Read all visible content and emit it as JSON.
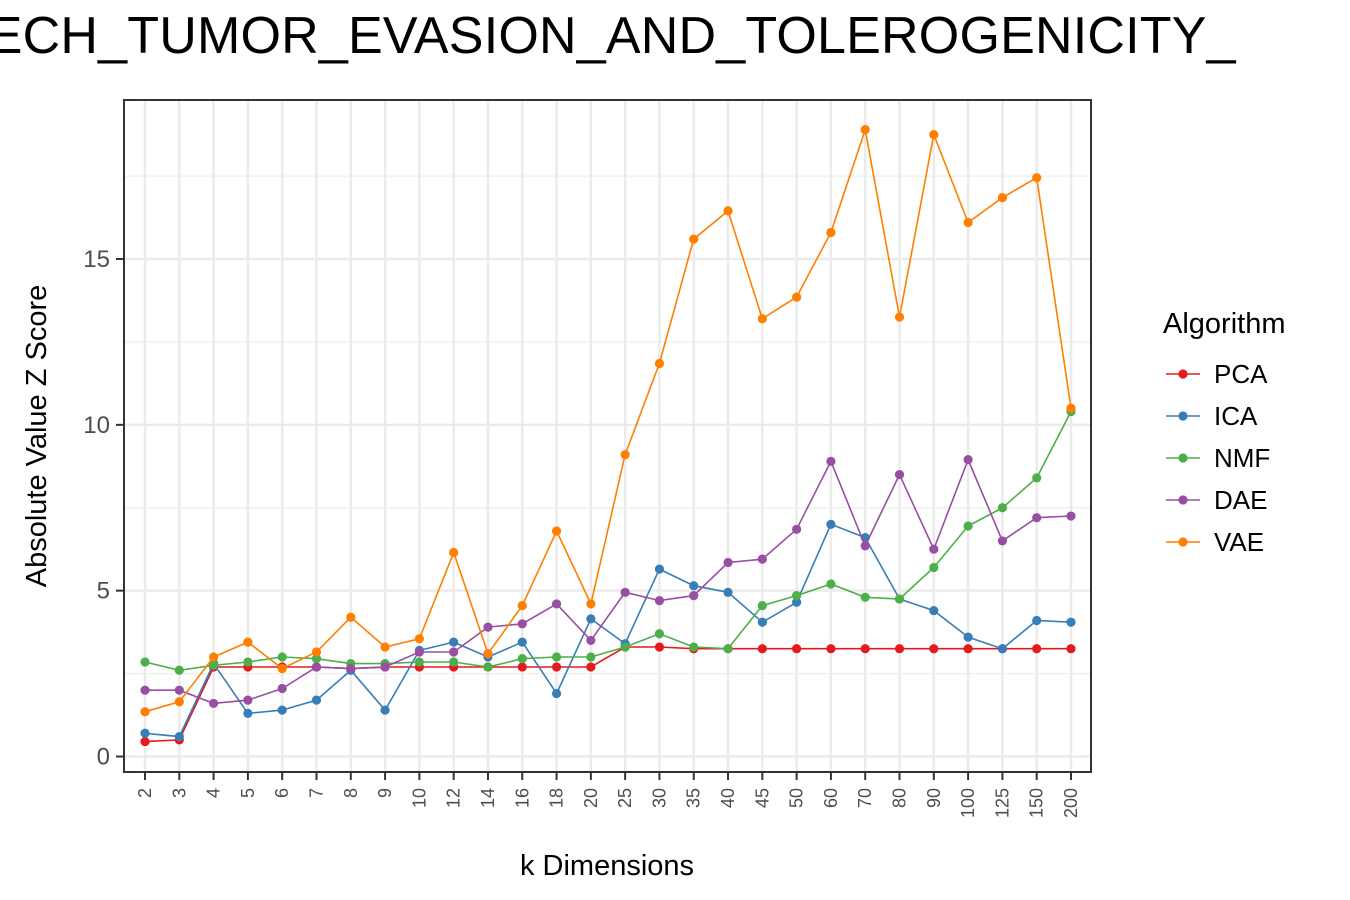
{
  "chart_data": {
    "type": "line",
    "title": "HECH_TUMOR_EVASION_AND_TOLEROGENICITY_",
    "xlabel": "k Dimensions",
    "ylabel": "Absolute Value Z Score",
    "categories": [
      "2",
      "3",
      "4",
      "5",
      "6",
      "7",
      "8",
      "9",
      "10",
      "12",
      "14",
      "16",
      "18",
      "20",
      "25",
      "30",
      "35",
      "40",
      "45",
      "50",
      "60",
      "70",
      "80",
      "90",
      "100",
      "125",
      "150",
      "200"
    ],
    "ylim": [
      -0.5,
      19.5
    ],
    "yticks": [
      0,
      5,
      10,
      15
    ],
    "grid": true,
    "legend": {
      "title": "Algorithm",
      "position": "right"
    },
    "series": [
      {
        "name": "PCA",
        "color": "#e41a1c",
        "values": [
          0.45,
          0.5,
          2.7,
          2.7,
          2.7,
          2.7,
          2.65,
          2.7,
          2.7,
          2.7,
          2.7,
          2.7,
          2.7,
          2.7,
          3.3,
          3.3,
          3.25,
          3.25,
          3.25,
          3.25,
          3.25,
          3.25,
          3.25,
          3.25,
          3.25,
          3.25,
          3.25,
          3.25
        ]
      },
      {
        "name": "ICA",
        "color": "#377eb8",
        "values": [
          0.7,
          0.6,
          2.8,
          1.3,
          1.4,
          1.7,
          2.6,
          1.4,
          3.2,
          3.45,
          3.0,
          3.45,
          1.9,
          4.15,
          3.4,
          5.65,
          5.15,
          4.95,
          4.05,
          4.65,
          7.0,
          6.6,
          4.75,
          4.4,
          3.6,
          3.25,
          4.1,
          4.05
        ]
      },
      {
        "name": "NMF",
        "color": "#4daf4a",
        "values": [
          2.85,
          2.6,
          2.75,
          2.85,
          3.0,
          2.95,
          2.8,
          2.8,
          2.85,
          2.85,
          2.7,
          2.95,
          3.0,
          3.0,
          3.3,
          3.7,
          3.3,
          3.25,
          4.55,
          4.85,
          5.2,
          4.8,
          4.75,
          5.7,
          6.95,
          7.5,
          8.4,
          10.4
        ]
      },
      {
        "name": "DAE",
        "color": "#984ea3",
        "values": [
          2.0,
          2.0,
          1.6,
          1.7,
          2.05,
          2.7,
          2.65,
          2.7,
          3.15,
          3.15,
          3.9,
          4.0,
          4.6,
          3.5,
          4.95,
          4.7,
          4.85,
          5.85,
          5.95,
          6.85,
          8.9,
          6.35,
          8.5,
          6.25,
          8.95,
          6.5,
          7.2,
          7.25
        ]
      },
      {
        "name": "VAE",
        "color": "#ff7f00",
        "values": [
          1.35,
          1.65,
          3.0,
          3.45,
          2.65,
          3.15,
          4.2,
          3.3,
          3.55,
          6.15,
          3.1,
          4.55,
          6.8,
          4.6,
          9.1,
          11.85,
          15.6,
          16.45,
          13.2,
          13.85,
          15.8,
          18.9,
          13.25,
          18.75,
          16.1,
          16.85,
          17.45,
          10.5
        ]
      }
    ]
  }
}
